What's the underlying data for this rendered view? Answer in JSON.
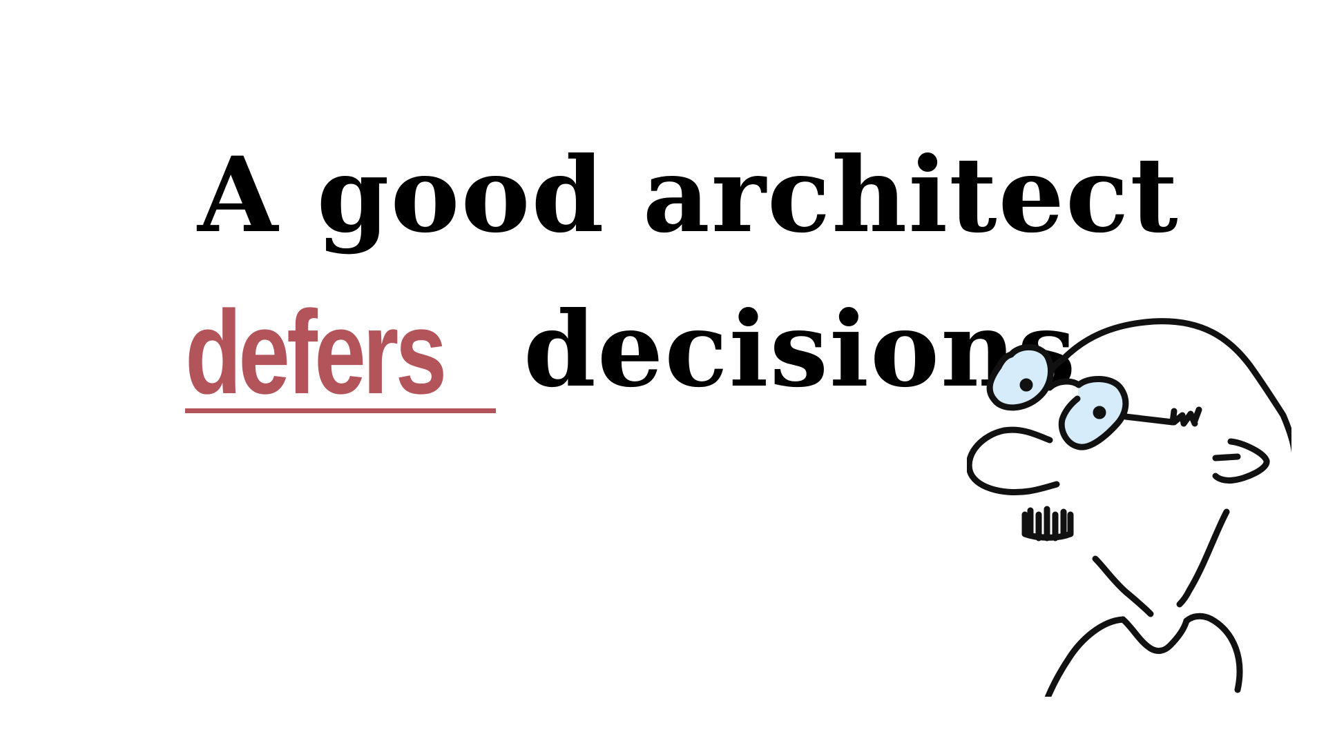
{
  "slide": {
    "line1": "A good architect",
    "emphasis": "defers",
    "line2_rest": "decisions"
  },
  "colors": {
    "text": "#000000",
    "accent": "#b3545b",
    "background": "#ffffff",
    "glasses_tint": "#d6ecfb"
  },
  "illustration": {
    "icon": "bald-cartoon-character-with-glasses-icon"
  }
}
